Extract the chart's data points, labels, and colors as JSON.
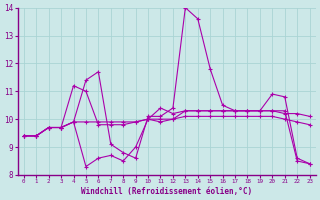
{
  "xlabel": "Windchill (Refroidissement éolien,°C)",
  "xlim_min": -0.5,
  "xlim_max": 23.5,
  "ylim_min": 8,
  "ylim_max": 14,
  "xticks": [
    0,
    1,
    2,
    3,
    4,
    5,
    6,
    7,
    8,
    9,
    10,
    11,
    12,
    13,
    14,
    15,
    16,
    17,
    18,
    19,
    20,
    21,
    22,
    23
  ],
  "yticks": [
    8,
    9,
    10,
    11,
    12,
    13,
    14
  ],
  "bg_color": "#cce8e8",
  "plot_bg": "#cce8e8",
  "line_color": "#aa00aa",
  "grid_color": "#aad4d4",
  "label_color": "#880088",
  "axis_line_color": "#880088",
  "series": [
    [
      9.4,
      9.4,
      9.7,
      9.7,
      9.9,
      11.4,
      11.7,
      9.1,
      8.8,
      8.6,
      10.1,
      10.1,
      10.4,
      14.0,
      13.6,
      11.8,
      10.5,
      10.3,
      10.3,
      10.3,
      10.9,
      10.8,
      8.6,
      8.4
    ],
    [
      9.4,
      9.4,
      9.7,
      9.7,
      11.2,
      11.0,
      9.8,
      9.8,
      9.8,
      9.9,
      10.0,
      10.4,
      10.2,
      10.3,
      10.3,
      10.3,
      10.3,
      10.3,
      10.3,
      10.3,
      10.3,
      10.2,
      10.2,
      10.1
    ],
    [
      9.4,
      9.4,
      9.7,
      9.7,
      9.9,
      9.9,
      9.9,
      9.9,
      9.9,
      9.9,
      10.0,
      10.0,
      10.0,
      10.1,
      10.1,
      10.1,
      10.1,
      10.1,
      10.1,
      10.1,
      10.1,
      10.0,
      9.9,
      9.8
    ],
    [
      9.4,
      9.4,
      9.7,
      9.7,
      9.9,
      8.3,
      8.6,
      8.7,
      8.5,
      9.0,
      10.0,
      9.9,
      10.0,
      10.3,
      10.3,
      10.3,
      10.3,
      10.3,
      10.3,
      10.3,
      10.3,
      10.3,
      8.5,
      8.4
    ]
  ]
}
